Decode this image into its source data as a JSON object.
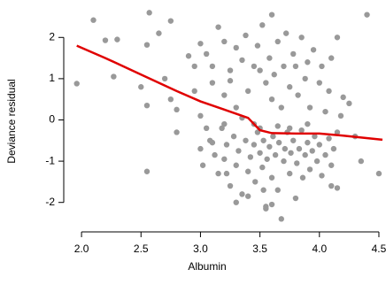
{
  "chart_data": {
    "type": "scatter",
    "x_label": "Albumin",
    "y_label": "Deviance residual",
    "xlim": [
      1.91,
      4.53
    ],
    "ylim": [
      -2.5,
      2.65
    ],
    "xticks": [
      {
        "value": 2,
        "label": "2.0"
      },
      {
        "value": 2.5,
        "label": "2.5"
      },
      {
        "value": 3,
        "label": "3.0"
      },
      {
        "value": 3.5,
        "label": "3.5"
      },
      {
        "value": 4,
        "label": "4.0"
      },
      {
        "value": 4.5,
        "label": "4.5"
      }
    ],
    "yticks": [
      -2,
      -1,
      0,
      1,
      2
    ],
    "color": "#999999",
    "x": [
      1.96,
      2.1,
      2.2,
      2.27,
      2.3,
      2.5,
      2.55,
      2.57,
      2.65,
      2.55,
      2.55,
      2.7,
      2.75,
      2.8,
      2.8,
      2.9,
      2.95,
      2.95,
      2.75,
      4.4,
      4.3,
      4.35,
      4.5,
      4.2,
      4.25,
      4.1,
      4.15,
      3.0,
      3.05,
      3.1,
      3.15,
      3.2,
      3.25,
      3.3,
      3.35,
      3.38,
      3.1,
      3.2,
      3.3,
      3.25,
      3.4,
      3.45,
      3.48,
      3.5,
      3.52,
      3.55,
      3.58,
      3.6,
      3.62,
      3.65,
      3.68,
      3.7,
      3.72,
      3.75,
      3.78,
      3.8,
      3.82,
      3.85,
      3.88,
      3.9,
      3.92,
      3.95,
      4.0,
      4.02,
      4.05,
      4.08,
      4.1,
      4.15,
      4.18,
      3.6,
      3.0,
      3.05,
      3.0,
      3.02,
      3.08,
      3.12,
      3.15,
      3.18,
      3.2,
      3.22,
      3.25,
      3.28,
      3.3,
      3.32,
      3.35,
      3.38,
      3.4,
      3.42,
      3.45,
      3.46,
      3.48,
      3.5,
      3.52,
      3.53,
      3.55,
      3.56,
      3.58,
      3.6,
      3.61,
      3.63,
      3.65,
      3.66,
      3.68,
      3.7,
      3.71,
      3.73,
      3.75,
      3.76,
      3.78,
      3.8,
      3.81,
      3.83,
      3.85,
      3.86,
      3.88,
      3.9,
      3.92,
      3.94,
      3.96,
      3.98,
      4.0,
      4.02,
      4.05,
      4.08,
      4.1,
      4.12,
      4.15,
      3.3,
      3.4,
      3.55,
      3.6,
      3.5,
      3.35,
      3.45,
      3.65,
      3.75,
      3.9,
      3.2,
      3.1,
      3.22,
      3.53
    ],
    "values": [
      0.88,
      2.42,
      1.93,
      1.05,
      1.95,
      0.8,
      1.82,
      2.6,
      2.1,
      0.35,
      -1.25,
      1.0,
      0.5,
      0.25,
      -0.3,
      1.55,
      0.7,
      1.3,
      2.4,
      2.55,
      -0.4,
      -1.0,
      -1.3,
      0.55,
      0.4,
      -1.6,
      -1.65,
      1.85,
      1.6,
      1.3,
      2.25,
      1.9,
      1.2,
      1.75,
      1.45,
      2.05,
      0.9,
      0.6,
      0.3,
      0.95,
      0.7,
      1.3,
      1.8,
      1.2,
      2.3,
      0.9,
      1.5,
      0.5,
      1.1,
      1.9,
      0.3,
      1.3,
      2.1,
      0.8,
      1.6,
      1.3,
      0.6,
      2.0,
      1.0,
      1.4,
      0.3,
      1.7,
      0.9,
      1.3,
      0.2,
      0.7,
      1.5,
      2.0,
      0.1,
      2.55,
      0.1,
      -0.2,
      -0.7,
      -1.1,
      -0.5,
      -0.85,
      -1.3,
      -0.2,
      -0.95,
      -0.6,
      -1.6,
      -0.4,
      -1.1,
      -0.75,
      -1.8,
      -0.5,
      -1.25,
      -0.9,
      -0.6,
      -1.5,
      -0.3,
      -0.8,
      -1.15,
      -0.5,
      -2.1,
      -0.95,
      -0.65,
      -1.4,
      -0.4,
      -0.85,
      -1.7,
      -0.55,
      -2.4,
      -1.0,
      -0.7,
      -0.3,
      -1.3,
      -0.8,
      -0.5,
      -1.9,
      -1.05,
      -0.7,
      -0.25,
      -1.4,
      -0.85,
      -0.55,
      -1.2,
      -0.75,
      -0.4,
      -1.0,
      -0.6,
      -1.35,
      -0.85,
      -0.45,
      -1.1,
      -0.7,
      -0.3,
      -2.0,
      -1.85,
      -2.15,
      -2.05,
      -0.2,
      0.05,
      -0.1,
      -0.15,
      -0.2,
      -0.1,
      -0.1,
      -0.55,
      -1.3,
      -1.7
    ],
    "line": {
      "color": "#e00000",
      "x": [
        1.96,
        2.2,
        2.5,
        2.8,
        3.0,
        3.2,
        3.4,
        3.5,
        3.6,
        3.8,
        4.0,
        4.2,
        4.53
      ],
      "values": [
        1.8,
        1.5,
        1.1,
        0.7,
        0.45,
        0.25,
        0.05,
        -0.25,
        -0.32,
        -0.33,
        -0.33,
        -0.38,
        -0.48
      ]
    }
  }
}
